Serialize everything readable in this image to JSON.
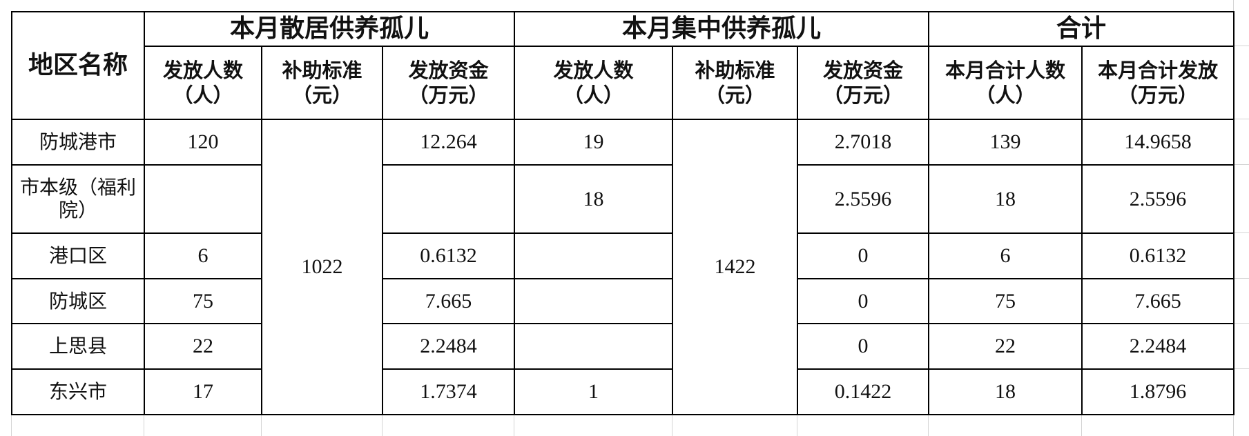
{
  "header": {
    "region": "地区名称",
    "groups": [
      "本月散居供养孤儿",
      "本月集中供养孤儿",
      "合计"
    ],
    "sub": [
      [
        "发放人数",
        "（人）"
      ],
      [
        "补助标准",
        "（元）"
      ],
      [
        "发放资金",
        "（万元）"
      ],
      [
        "发放人数",
        "（人）"
      ],
      [
        "补助标准",
        "（元）"
      ],
      [
        "发放资金",
        "（万元）"
      ],
      [
        "本月合计人数",
        "（人）"
      ],
      [
        "本月合计发放",
        "（万元）"
      ]
    ]
  },
  "standards": {
    "scattered": "1022",
    "centralized": "1422"
  },
  "rows": [
    {
      "name": "防城港市",
      "s_count": "120",
      "s_fund": "12.264",
      "c_count": "19",
      "c_fund": "2.7018",
      "t_count": "139",
      "t_fund": "14.9658"
    },
    {
      "name": "市本级（福利院）",
      "s_count": "",
      "s_fund": "",
      "c_count": "18",
      "c_fund": "2.5596",
      "t_count": "18",
      "t_fund": "2.5596"
    },
    {
      "name": "港口区",
      "s_count": "6",
      "s_fund": "0.6132",
      "c_count": "",
      "c_fund": "0",
      "t_count": "6",
      "t_fund": "0.6132"
    },
    {
      "name": "防城区",
      "s_count": "75",
      "s_fund": "7.665",
      "c_count": "",
      "c_fund": "0",
      "t_count": "75",
      "t_fund": "7.665"
    },
    {
      "name": "上思县",
      "s_count": "22",
      "s_fund": "2.2484",
      "c_count": "",
      "c_fund": "0",
      "t_count": "22",
      "t_fund": "2.2484"
    },
    {
      "name": "东兴市",
      "s_count": "17",
      "s_fund": "1.7374",
      "c_count": "1",
      "c_fund": "0.1422",
      "t_count": "18",
      "t_fund": "1.8796"
    }
  ]
}
